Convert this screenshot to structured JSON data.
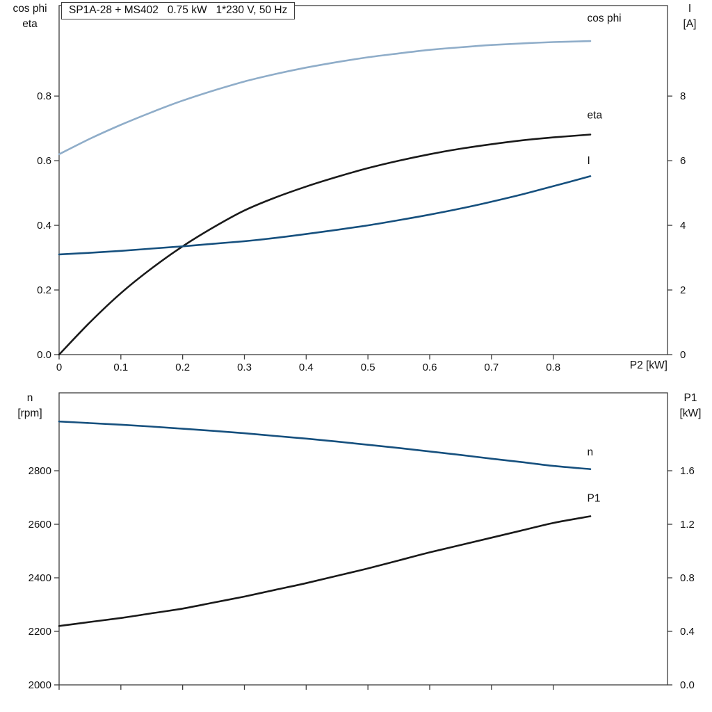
{
  "title_box": {
    "text": "SP1A-28 + MS402   0.75 kW   1*230 V, 50 Hz"
  },
  "colors": {
    "light_blue": "#8fadc9",
    "dark_blue": "#16507e",
    "black": "#1a1a1a",
    "frame": "#3c3c3c"
  },
  "chart_data": [
    {
      "id": "top",
      "type": "line",
      "x_axis": {
        "label": "P2 [kW]",
        "min": 0,
        "max": 0.985,
        "show_tick_labels": true,
        "ticks": [
          {
            "v": 0,
            "label": "0"
          },
          {
            "v": 0.1,
            "label": "0.1"
          },
          {
            "v": 0.2,
            "label": "0.2"
          },
          {
            "v": 0.3,
            "label": "0.3"
          },
          {
            "v": 0.4,
            "label": "0.4"
          },
          {
            "v": 0.5,
            "label": "0.5"
          },
          {
            "v": 0.6,
            "label": "0.6"
          },
          {
            "v": 0.7,
            "label": "0.7"
          },
          {
            "v": 0.8,
            "label": "0.8"
          }
        ]
      },
      "left_axis": {
        "title_lines": [
          "cos phi",
          "eta"
        ],
        "min": 0,
        "max": 1.08,
        "ticks": [
          {
            "v": 0.0,
            "label": "0.0"
          },
          {
            "v": 0.2,
            "label": "0.2"
          },
          {
            "v": 0.4,
            "label": "0.4"
          },
          {
            "v": 0.6,
            "label": "0.6"
          },
          {
            "v": 0.8,
            "label": "0.8"
          }
        ]
      },
      "right_axis": {
        "title_lines": [
          "I",
          "[A]"
        ],
        "min": 0,
        "max": 10.8,
        "ticks": [
          {
            "v": 0,
            "label": "0"
          },
          {
            "v": 2,
            "label": "2"
          },
          {
            "v": 4,
            "label": "4"
          },
          {
            "v": 6,
            "label": "6"
          },
          {
            "v": 8,
            "label": "8"
          }
        ]
      },
      "series": [
        {
          "name": "cos phi",
          "axis": "left",
          "color": "light_blue",
          "label_at": {
            "x": 0.855,
            "y": 1.03
          },
          "x": [
            0,
            0.05,
            0.1,
            0.15,
            0.2,
            0.25,
            0.3,
            0.35,
            0.4,
            0.45,
            0.5,
            0.55,
            0.6,
            0.65,
            0.7,
            0.75,
            0.8,
            0.86
          ],
          "y": [
            0.62,
            0.668,
            0.711,
            0.75,
            0.786,
            0.817,
            0.845,
            0.868,
            0.888,
            0.905,
            0.92,
            0.932,
            0.943,
            0.951,
            0.958,
            0.963,
            0.967,
            0.97
          ]
        },
        {
          "name": "eta",
          "axis": "left",
          "color": "black",
          "label_at": {
            "x": 0.855,
            "y": 0.73
          },
          "x": [
            0,
            0.05,
            0.1,
            0.15,
            0.2,
            0.25,
            0.3,
            0.35,
            0.4,
            0.45,
            0.5,
            0.55,
            0.6,
            0.65,
            0.7,
            0.75,
            0.8,
            0.86
          ],
          "y": [
            0.0,
            0.1,
            0.19,
            0.267,
            0.335,
            0.394,
            0.446,
            0.486,
            0.52,
            0.55,
            0.577,
            0.6,
            0.62,
            0.637,
            0.651,
            0.663,
            0.672,
            0.681
          ]
        },
        {
          "name": "I",
          "axis": "right",
          "color": "dark_blue",
          "label_at": {
            "x": 0.855,
            "y": 5.9
          },
          "x": [
            0,
            0.05,
            0.1,
            0.15,
            0.2,
            0.25,
            0.3,
            0.35,
            0.4,
            0.45,
            0.5,
            0.55,
            0.6,
            0.65,
            0.7,
            0.75,
            0.8,
            0.86
          ],
          "y": [
            3.1,
            3.15,
            3.21,
            3.28,
            3.35,
            3.43,
            3.51,
            3.61,
            3.73,
            3.86,
            4.0,
            4.16,
            4.33,
            4.52,
            4.73,
            4.96,
            5.21,
            5.52
          ]
        }
      ]
    },
    {
      "id": "bottom",
      "type": "line",
      "x_axis": {
        "label": "",
        "min": 0,
        "max": 0.985,
        "show_tick_labels": false,
        "ticks": [
          {
            "v": 0,
            "label": "0"
          },
          {
            "v": 0.1,
            "label": "0.1"
          },
          {
            "v": 0.2,
            "label": "0.2"
          },
          {
            "v": 0.3,
            "label": "0.3"
          },
          {
            "v": 0.4,
            "label": "0.4"
          },
          {
            "v": 0.5,
            "label": "0.5"
          },
          {
            "v": 0.6,
            "label": "0.6"
          },
          {
            "v": 0.7,
            "label": "0.7"
          },
          {
            "v": 0.8,
            "label": "0.8"
          }
        ]
      },
      "left_axis": {
        "title_lines": [
          "n",
          "[rpm]"
        ],
        "min": 2000,
        "max": 3091,
        "ticks": [
          {
            "v": 2000,
            "label": "2000"
          },
          {
            "v": 2200,
            "label": "2200"
          },
          {
            "v": 2400,
            "label": "2400"
          },
          {
            "v": 2600,
            "label": "2600"
          },
          {
            "v": 2800,
            "label": "2800"
          }
        ]
      },
      "right_axis": {
        "title_lines": [
          "P1",
          "[kW]"
        ],
        "min": 0,
        "max": 2.182,
        "ticks": [
          {
            "v": 0.0,
            "label": "0.0"
          },
          {
            "v": 0.4,
            "label": "0.4"
          },
          {
            "v": 0.8,
            "label": "0.8"
          },
          {
            "v": 1.2,
            "label": "1.2"
          },
          {
            "v": 1.6,
            "label": "1.6"
          }
        ]
      },
      "series": [
        {
          "name": "n",
          "axis": "left",
          "color": "dark_blue",
          "label_at": {
            "x": 0.855,
            "y": 2857
          },
          "x": [
            0,
            0.05,
            0.1,
            0.15,
            0.2,
            0.25,
            0.3,
            0.35,
            0.4,
            0.45,
            0.5,
            0.55,
            0.6,
            0.65,
            0.7,
            0.75,
            0.8,
            0.86
          ],
          "y": [
            2984,
            2978,
            2972,
            2965,
            2957,
            2949,
            2940,
            2930,
            2920,
            2909,
            2897,
            2885,
            2872,
            2859,
            2845,
            2832,
            2818,
            2806
          ]
        },
        {
          "name": "P1",
          "axis": "right",
          "color": "black",
          "label_at": {
            "x": 0.855,
            "y": 1.37
          },
          "x": [
            0,
            0.05,
            0.1,
            0.15,
            0.2,
            0.25,
            0.3,
            0.35,
            0.4,
            0.45,
            0.5,
            0.55,
            0.6,
            0.65,
            0.7,
            0.75,
            0.8,
            0.86
          ],
          "y": [
            0.44,
            0.47,
            0.5,
            0.535,
            0.57,
            0.615,
            0.66,
            0.71,
            0.76,
            0.815,
            0.87,
            0.93,
            0.99,
            1.045,
            1.1,
            1.155,
            1.21,
            1.26
          ]
        }
      ]
    }
  ]
}
